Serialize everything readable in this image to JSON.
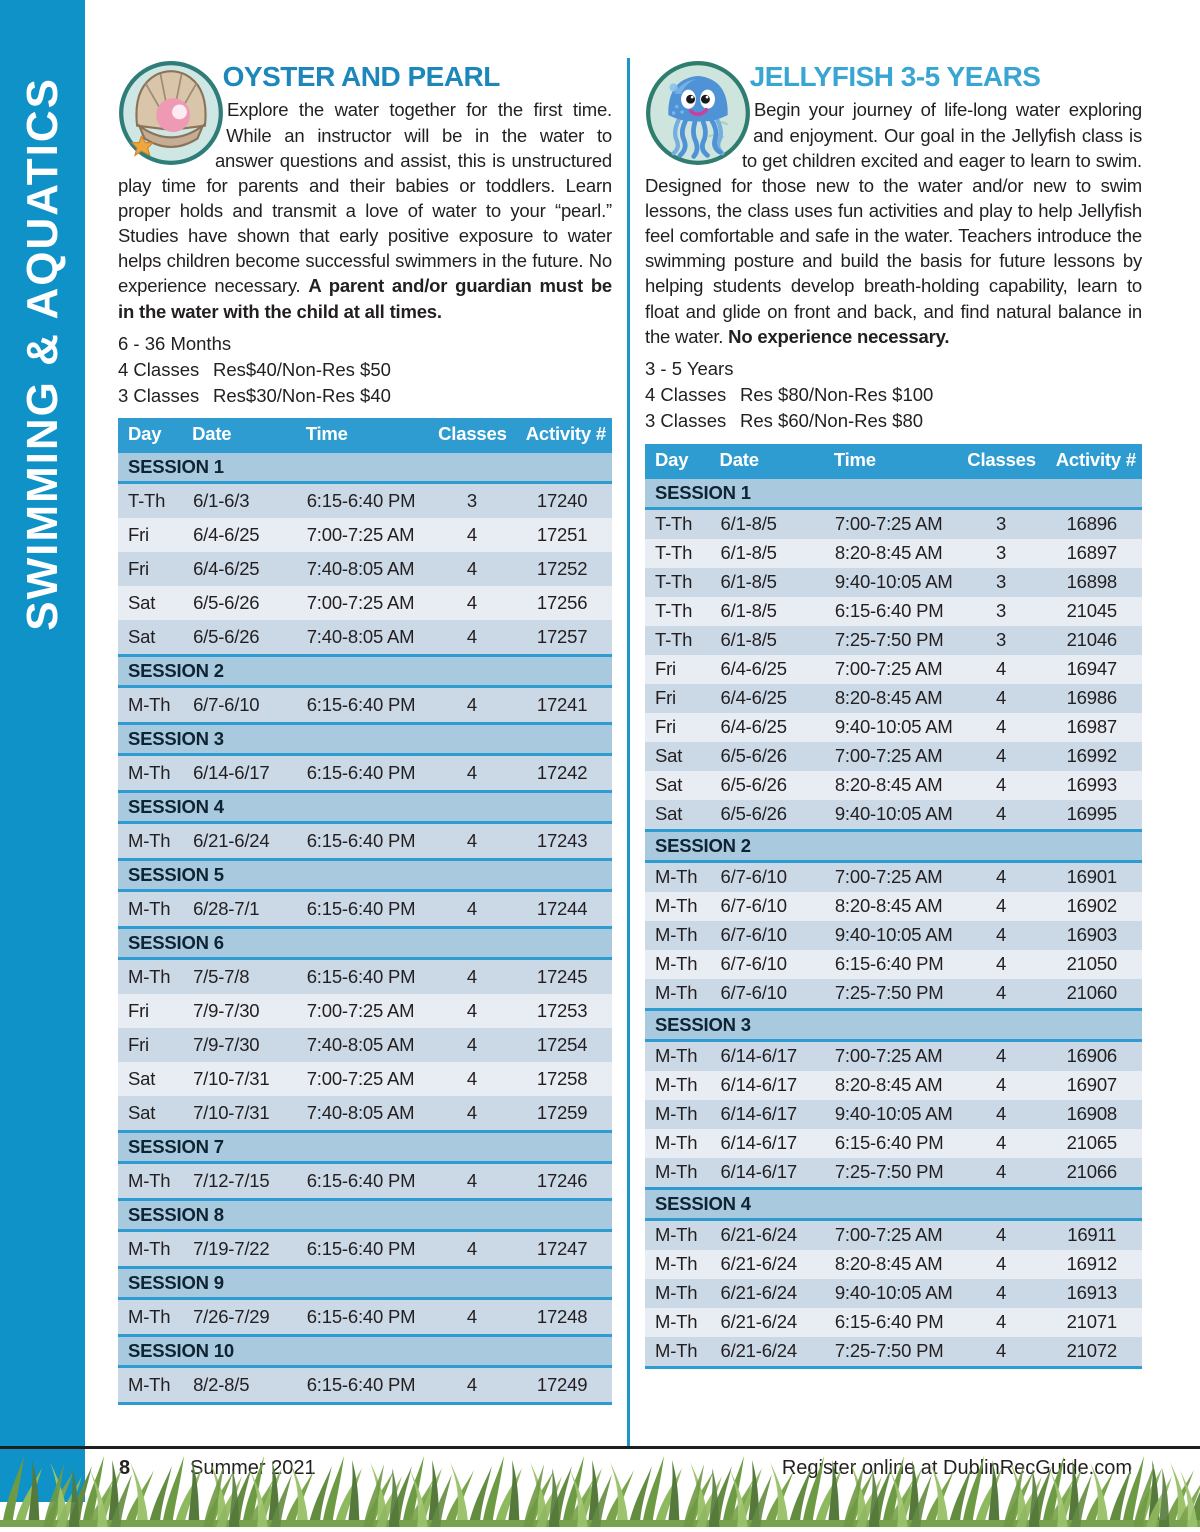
{
  "colors": {
    "sidebar_blue": "#0f92c8",
    "table_header_blue": "#2f9cd1",
    "session_row_blue": "#a9c9de",
    "row_dark": "#cbd9e7",
    "row_light": "#e8edf4",
    "title_left": "#1d86ba",
    "title_right": "#38a5d3",
    "grass_green": "#7ba24c"
  },
  "sidebar": {
    "label": "SWIMMING & AQUATICS"
  },
  "oyster": {
    "title": "OYSTER AND PEARL",
    "icon": "oyster-shell-pearl-icon",
    "description_main": "Explore the water together for the first time. While an instructor will be in the water to answer questions and assist, this is unstructured play time for parents and their babies or toddlers. Learn proper holds and transmit a love of water to your “pearl.” Studies have shown that early positive exposure to water helps children become successful swimmers in the future. No experience necessary. ",
    "description_bold": "A parent and/or guardian must be in the water with the child at all times.",
    "age_range": "6 - 36 Months",
    "pricing": [
      {
        "classes": "4 Classes",
        "price": "Res$40/Non-Res $50"
      },
      {
        "classes": "3 Classes",
        "price": "Res$30/Non-Res $40"
      }
    ],
    "table": {
      "columns": [
        "Day",
        "Date",
        "Time",
        "Classes",
        "Activity #"
      ],
      "sessions": [
        {
          "label": "SESSION 1",
          "rows": [
            [
              "T-Th",
              "6/1-6/3",
              "6:15-6:40 PM",
              "3",
              "17240"
            ],
            [
              "Fri",
              "6/4-6/25",
              "7:00-7:25 AM",
              "4",
              "17251"
            ],
            [
              "Fri",
              "6/4-6/25",
              "7:40-8:05 AM",
              "4",
              "17252"
            ],
            [
              "Sat",
              "6/5-6/26",
              "7:00-7:25 AM",
              "4",
              "17256"
            ],
            [
              "Sat",
              "6/5-6/26",
              "7:40-8:05 AM",
              "4",
              "17257"
            ]
          ]
        },
        {
          "label": "SESSION 2",
          "rows": [
            [
              "M-Th",
              "6/7-6/10",
              "6:15-6:40 PM",
              "4",
              "17241"
            ]
          ]
        },
        {
          "label": "SESSION 3",
          "rows": [
            [
              "M-Th",
              "6/14-6/17",
              "6:15-6:40 PM",
              "4",
              "17242"
            ]
          ]
        },
        {
          "label": "SESSION 4",
          "rows": [
            [
              "M-Th",
              "6/21-6/24",
              "6:15-6:40 PM",
              "4",
              "17243"
            ]
          ]
        },
        {
          "label": "SESSION 5",
          "rows": [
            [
              "M-Th",
              "6/28-7/1",
              "6:15-6:40 PM",
              "4",
              "17244"
            ]
          ]
        },
        {
          "label": "SESSION 6",
          "rows": [
            [
              "M-Th",
              "7/5-7/8",
              "6:15-6:40 PM",
              "4",
              "17245"
            ],
            [
              "Fri",
              "7/9-7/30",
              "7:00-7:25 AM",
              "4",
              "17253"
            ],
            [
              "Fri",
              "7/9-7/30",
              "7:40-8:05 AM",
              "4",
              "17254"
            ],
            [
              "Sat",
              "7/10-7/31",
              "7:00-7:25 AM",
              "4",
              "17258"
            ],
            [
              "Sat",
              "7/10-7/31",
              "7:40-8:05 AM",
              "4",
              "17259"
            ]
          ]
        },
        {
          "label": "SESSION 7",
          "rows": [
            [
              "M-Th",
              "7/12-7/15",
              "6:15-6:40 PM",
              "4",
              "17246"
            ]
          ]
        },
        {
          "label": "SESSION 8",
          "rows": [
            [
              "M-Th",
              "7/19-7/22",
              "6:15-6:40 PM",
              "4",
              "17247"
            ]
          ]
        },
        {
          "label": "SESSION 9",
          "rows": [
            [
              "M-Th",
              "7/26-7/29",
              "6:15-6:40 PM",
              "4",
              "17248"
            ]
          ]
        },
        {
          "label": "SESSION 10",
          "rows": [
            [
              "M-Th",
              "8/2-8/5",
              "6:15-6:40 PM",
              "4",
              "17249"
            ]
          ]
        }
      ]
    }
  },
  "jellyfish": {
    "title": "JELLYFISH 3-5 YEARS",
    "icon": "jellyfish-icon",
    "description_main": "Begin your journey of life-long water exploring and enjoyment. Our goal in the Jellyfish class is to get children excited and eager to learn to swim. Designed for those new to the water and/or new to swim lessons, the class uses fun activities and play to help Jellyfish feel comfortable and safe in the water. Teachers introduce the swimming posture and build the basis for future lessons by helping students develop breath-holding capability, learn to float and glide on front and back, and find natural balance in the water. ",
    "description_bold": "No experience necessary.",
    "age_range": "3 - 5 Years",
    "pricing": [
      {
        "classes": "4 Classes",
        "price": "Res $80/Non-Res $100"
      },
      {
        "classes": "3 Classes",
        "price": "Res $60/Non-Res $80"
      }
    ],
    "table": {
      "columns": [
        "Day",
        "Date",
        "Time",
        "Classes",
        "Activity #"
      ],
      "sessions": [
        {
          "label": "SESSION 1",
          "rows": [
            [
              "T-Th",
              "6/1-8/5",
              "7:00-7:25 AM",
              "3",
              "16896"
            ],
            [
              "T-Th",
              "6/1-8/5",
              "8:20-8:45 AM",
              "3",
              "16897"
            ],
            [
              "T-Th",
              "6/1-8/5",
              "9:40-10:05 AM",
              "3",
              "16898"
            ],
            [
              "T-Th",
              "6/1-8/5",
              "6:15-6:40 PM",
              "3",
              "21045"
            ],
            [
              "T-Th",
              "6/1-8/5",
              "7:25-7:50 PM",
              "3",
              "21046"
            ],
            [
              "Fri",
              "6/4-6/25",
              "7:00-7:25 AM",
              "4",
              "16947"
            ],
            [
              "Fri",
              "6/4-6/25",
              "8:20-8:45 AM",
              "4",
              "16986"
            ],
            [
              "Fri",
              "6/4-6/25",
              "9:40-10:05 AM",
              "4",
              "16987"
            ],
            [
              "Sat",
              "6/5-6/26",
              "7:00-7:25 AM",
              "4",
              "16992"
            ],
            [
              "Sat",
              "6/5-6/26",
              "8:20-8:45 AM",
              "4",
              "16993"
            ],
            [
              "Sat",
              "6/5-6/26",
              "9:40-10:05 AM",
              "4",
              "16995"
            ]
          ]
        },
        {
          "label": "SESSION 2",
          "rows": [
            [
              "M-Th",
              "6/7-6/10",
              "7:00-7:25 AM",
              "4",
              "16901"
            ],
            [
              "M-Th",
              "6/7-6/10",
              "8:20-8:45 AM",
              "4",
              "16902"
            ],
            [
              "M-Th",
              "6/7-6/10",
              "9:40-10:05 AM",
              "4",
              "16903"
            ],
            [
              "M-Th",
              "6/7-6/10",
              "6:15-6:40 PM",
              "4",
              "21050"
            ],
            [
              "M-Th",
              "6/7-6/10",
              "7:25-7:50 PM",
              "4",
              "21060"
            ]
          ]
        },
        {
          "label": "SESSION 3",
          "rows": [
            [
              "M-Th",
              "6/14-6/17",
              "7:00-7:25 AM",
              "4",
              "16906"
            ],
            [
              "M-Th",
              "6/14-6/17",
              "8:20-8:45 AM",
              "4",
              "16907"
            ],
            [
              "M-Th",
              "6/14-6/17",
              "9:40-10:05 AM",
              "4",
              "16908"
            ],
            [
              "M-Th",
              "6/14-6/17",
              "6:15-6:40 PM",
              "4",
              "21065"
            ],
            [
              "M-Th",
              "6/14-6/17",
              "7:25-7:50 PM",
              "4",
              "21066"
            ]
          ]
        },
        {
          "label": "SESSION 4",
          "rows": [
            [
              "M-Th",
              "6/21-6/24",
              "7:00-7:25 AM",
              "4",
              "16911"
            ],
            [
              "M-Th",
              "6/21-6/24",
              "8:20-8:45 AM",
              "4",
              "16912"
            ],
            [
              "M-Th",
              "6/21-6/24",
              "9:40-10:05 AM",
              "4",
              "16913"
            ],
            [
              "M-Th",
              "6/21-6/24",
              "6:15-6:40 PM",
              "4",
              "21071"
            ],
            [
              "M-Th",
              "6/21-6/24",
              "7:25-7:50 PM",
              "4",
              "21072"
            ]
          ]
        }
      ]
    }
  },
  "footer": {
    "page_number": "8",
    "season": "Summer 2021",
    "register_text": "Register online at DublinRecGuide.com"
  }
}
